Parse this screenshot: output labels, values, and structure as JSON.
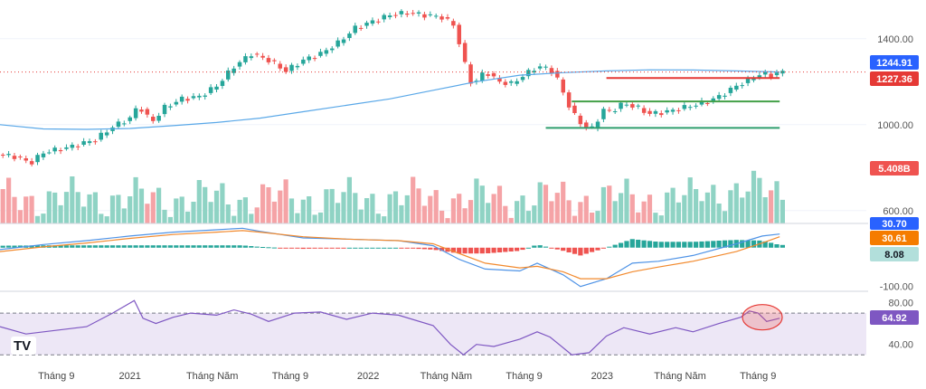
{
  "chart_data": [
    {
      "panel": "price",
      "type": "candlestick",
      "y_ticks": [
        1400.0,
        1000.0,
        600.0
      ],
      "ylim": [
        540,
        1580
      ],
      "price_points": [
        [
          0.0,
          860
        ],
        [
          0.02,
          850
        ],
        [
          0.035,
          820
        ],
        [
          0.05,
          870
        ],
        [
          0.08,
          895
        ],
        [
          0.11,
          930
        ],
        [
          0.13,
          990
        ],
        [
          0.15,
          1030
        ],
        [
          0.16,
          1090
        ],
        [
          0.175,
          1010
        ],
        [
          0.19,
          1080
        ],
        [
          0.21,
          1120
        ],
        [
          0.23,
          1130
        ],
        [
          0.25,
          1180
        ],
        [
          0.27,
          1270
        ],
        [
          0.29,
          1330
        ],
        [
          0.31,
          1300
        ],
        [
          0.33,
          1250
        ],
        [
          0.35,
          1300
        ],
        [
          0.37,
          1330
        ],
        [
          0.39,
          1380
        ],
        [
          0.41,
          1450
        ],
        [
          0.43,
          1480
        ],
        [
          0.45,
          1510
        ],
        [
          0.47,
          1520
        ],
        [
          0.49,
          1510
        ],
        [
          0.51,
          1500
        ],
        [
          0.525,
          1460
        ],
        [
          0.535,
          1300
        ],
        [
          0.545,
          1180
        ],
        [
          0.56,
          1250
        ],
        [
          0.575,
          1200
        ],
        [
          0.59,
          1190
        ],
        [
          0.605,
          1230
        ],
        [
          0.62,
          1270
        ],
        [
          0.635,
          1260
        ],
        [
          0.645,
          1200
        ],
        [
          0.655,
          1100
        ],
        [
          0.665,
          1030
        ],
        [
          0.675,
          990
        ],
        [
          0.685,
          980
        ],
        [
          0.695,
          1070
        ],
        [
          0.705,
          1060
        ],
        [
          0.72,
          1100
        ],
        [
          0.735,
          1080
        ],
        [
          0.75,
          1050
        ],
        [
          0.77,
          1060
        ],
        [
          0.79,
          1080
        ],
        [
          0.81,
          1100
        ],
        [
          0.83,
          1130
        ],
        [
          0.85,
          1180
        ],
        [
          0.87,
          1220
        ],
        [
          0.88,
          1240
        ],
        [
          0.89,
          1230
        ],
        [
          0.895,
          1235
        ],
        [
          0.9,
          1245
        ]
      ],
      "ma200_points": [
        [
          0.0,
          1000
        ],
        [
          0.05,
          980
        ],
        [
          0.1,
          978
        ],
        [
          0.15,
          982
        ],
        [
          0.2,
          995
        ],
        [
          0.25,
          1010
        ],
        [
          0.3,
          1030
        ],
        [
          0.35,
          1060
        ],
        [
          0.4,
          1090
        ],
        [
          0.45,
          1120
        ],
        [
          0.5,
          1160
        ],
        [
          0.55,
          1200
        ],
        [
          0.6,
          1230
        ],
        [
          0.65,
          1242
        ],
        [
          0.7,
          1250
        ],
        [
          0.75,
          1255
        ],
        [
          0.8,
          1254
        ],
        [
          0.85,
          1250
        ],
        [
          0.9,
          1245
        ]
      ],
      "h_lines": [
        {
          "name": "resistance-red",
          "y": 1217,
          "x0": 0.7,
          "x1": 0.9,
          "color": "#e53935"
        },
        {
          "name": "support-green-upper",
          "y": 1108,
          "x0": 0.66,
          "x1": 0.9,
          "color": "#43a047"
        },
        {
          "name": "support-green-lower",
          "y": 985,
          "x0": 0.63,
          "x1": 0.9,
          "color": "#2e9e6e"
        }
      ],
      "price_line": 1244.91,
      "labels": {
        "last_price": "1244.91",
        "level": "1227.36",
        "volume": "5.408B"
      }
    },
    {
      "panel": "macd",
      "type": "line",
      "y_ticks": [
        -100.0
      ],
      "ylim": [
        -110,
        60
      ],
      "series": [
        {
          "color": "#4f93e6",
          "points": [
            [
              0.0,
              -5
            ],
            [
              0.05,
              8
            ],
            [
              0.1,
              18
            ],
            [
              0.15,
              30
            ],
            [
              0.2,
              40
            ],
            [
              0.25,
              46
            ],
            [
              0.28,
              50
            ],
            [
              0.3,
              42
            ],
            [
              0.35,
              25
            ],
            [
              0.4,
              22
            ],
            [
              0.43,
              20
            ],
            [
              0.46,
              18
            ],
            [
              0.5,
              5
            ],
            [
              0.53,
              -30
            ],
            [
              0.56,
              -55
            ],
            [
              0.6,
              -60
            ],
            [
              0.62,
              -40
            ],
            [
              0.65,
              -70
            ],
            [
              0.67,
              -100
            ],
            [
              0.7,
              -80
            ],
            [
              0.73,
              -40
            ],
            [
              0.76,
              -35
            ],
            [
              0.8,
              -20
            ],
            [
              0.85,
              10
            ],
            [
              0.88,
              30
            ],
            [
              0.9,
              35
            ]
          ]
        },
        {
          "color": "#f28a2e",
          "points": [
            [
              0.0,
              -10
            ],
            [
              0.05,
              2
            ],
            [
              0.1,
              12
            ],
            [
              0.15,
              24
            ],
            [
              0.2,
              34
            ],
            [
              0.25,
              40
            ],
            [
              0.28,
              44
            ],
            [
              0.3,
              40
            ],
            [
              0.35,
              28
            ],
            [
              0.4,
              22
            ],
            [
              0.43,
              20
            ],
            [
              0.46,
              18
            ],
            [
              0.5,
              10
            ],
            [
              0.53,
              -15
            ],
            [
              0.56,
              -40
            ],
            [
              0.6,
              -52
            ],
            [
              0.62,
              -48
            ],
            [
              0.65,
              -62
            ],
            [
              0.67,
              -80
            ],
            [
              0.7,
              -80
            ],
            [
              0.73,
              -62
            ],
            [
              0.76,
              -50
            ],
            [
              0.8,
              -35
            ],
            [
              0.85,
              -10
            ],
            [
              0.88,
              12
            ],
            [
              0.9,
              28
            ]
          ]
        }
      ],
      "labels": {
        "value_top": "30.70",
        "value_mid": "30.61",
        "value_low": "8.08",
        "tick": "-100.00"
      }
    },
    {
      "panel": "rsi",
      "type": "line",
      "y_ticks": [
        80.0,
        40.0
      ],
      "ylim": [
        25,
        90
      ],
      "band": [
        30,
        70
      ],
      "points": [
        [
          0.0,
          57
        ],
        [
          0.03,
          50
        ],
        [
          0.06,
          53
        ],
        [
          0.1,
          57
        ],
        [
          0.13,
          70
        ],
        [
          0.155,
          82
        ],
        [
          0.165,
          65
        ],
        [
          0.18,
          60
        ],
        [
          0.2,
          66
        ],
        [
          0.22,
          70
        ],
        [
          0.25,
          68
        ],
        [
          0.27,
          73
        ],
        [
          0.29,
          69
        ],
        [
          0.31,
          62
        ],
        [
          0.34,
          70
        ],
        [
          0.37,
          71
        ],
        [
          0.4,
          64
        ],
        [
          0.43,
          70
        ],
        [
          0.46,
          68
        ],
        [
          0.5,
          58
        ],
        [
          0.52,
          40
        ],
        [
          0.535,
          30
        ],
        [
          0.55,
          40
        ],
        [
          0.57,
          38
        ],
        [
          0.6,
          45
        ],
        [
          0.62,
          52
        ],
        [
          0.635,
          47
        ],
        [
          0.66,
          30
        ],
        [
          0.68,
          32
        ],
        [
          0.7,
          48
        ],
        [
          0.72,
          56
        ],
        [
          0.75,
          50
        ],
        [
          0.78,
          56
        ],
        [
          0.8,
          52
        ],
        [
          0.83,
          60
        ],
        [
          0.855,
          66
        ],
        [
          0.865,
          72
        ],
        [
          0.875,
          70
        ],
        [
          0.885,
          62
        ],
        [
          0.9,
          65
        ]
      ],
      "circle_at": 0.88,
      "labels": {
        "value": "64.92"
      }
    }
  ],
  "x_ticks": [
    {
      "pos": 0.065,
      "label": "Tháng 9"
    },
    {
      "pos": 0.15,
      "label": "2021"
    },
    {
      "pos": 0.245,
      "label": "Tháng Năm"
    },
    {
      "pos": 0.335,
      "label": "Tháng 9"
    },
    {
      "pos": 0.425,
      "label": "2022"
    },
    {
      "pos": 0.515,
      "label": "Tháng Năm"
    },
    {
      "pos": 0.605,
      "label": "Tháng 9"
    },
    {
      "pos": 0.695,
      "label": "2023"
    },
    {
      "pos": 0.785,
      "label": "Tháng Năm"
    },
    {
      "pos": 0.875,
      "label": "Tháng 9"
    }
  ],
  "colors": {
    "up": "#26a69a",
    "down": "#ef5350",
    "vol_up": "#8fd3c4",
    "vol_down": "#f5a3a6",
    "ma": "#5aa8e8",
    "rsi": "#7e57c2",
    "rsi_band": "#ede7f6",
    "price_badge": "#2962ff",
    "level_badge": "#e53935",
    "volume_badge": "#ef5350",
    "macd_blue": "#2962ff",
    "macd_orange": "#f57c00",
    "macd_hist_badge": "#b2dfdb"
  },
  "logo_text": "TV"
}
